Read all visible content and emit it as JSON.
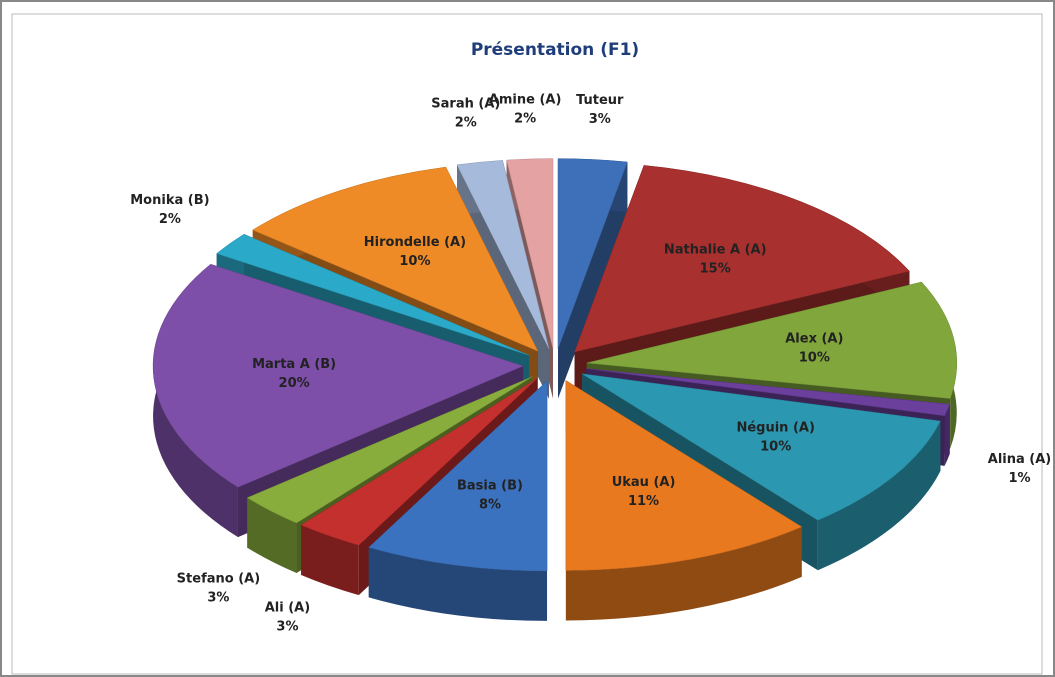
{
  "chart_data": {
    "type": "pie",
    "title": "Présentation (F1)",
    "categories": [
      "Tuteur",
      "Nathalie A (A)",
      "Alex (A)",
      "Alina (A)",
      "Néguin (A)",
      "Ukau (A)",
      "Basia (B)",
      "Ali (A)",
      "Stefano (A)",
      "Marta A (B)",
      "Monika (B)",
      "Hirondelle (A)",
      "Sarah (A)",
      "Amine (A)"
    ],
    "values": [
      3,
      15,
      10,
      1,
      10,
      11,
      8,
      3,
      3,
      20,
      2,
      10,
      2,
      2
    ],
    "value_labels": [
      "3%",
      "15%",
      "10%",
      "1%",
      "10%",
      "11%",
      "8%",
      "3%",
      "3%",
      "20%",
      "2%",
      "10%",
      "2%",
      "2%"
    ],
    "colors": [
      "#3d70b8",
      "#a8302e",
      "#80a63c",
      "#6b3f9c",
      "#2b97b0",
      "#e8791f",
      "#3b72c0",
      "#c4302e",
      "#88ad3c",
      "#7d4fa8",
      "#2ba9c8",
      "#ee8b26",
      "#a6badc",
      "#e4a2a2"
    ]
  }
}
